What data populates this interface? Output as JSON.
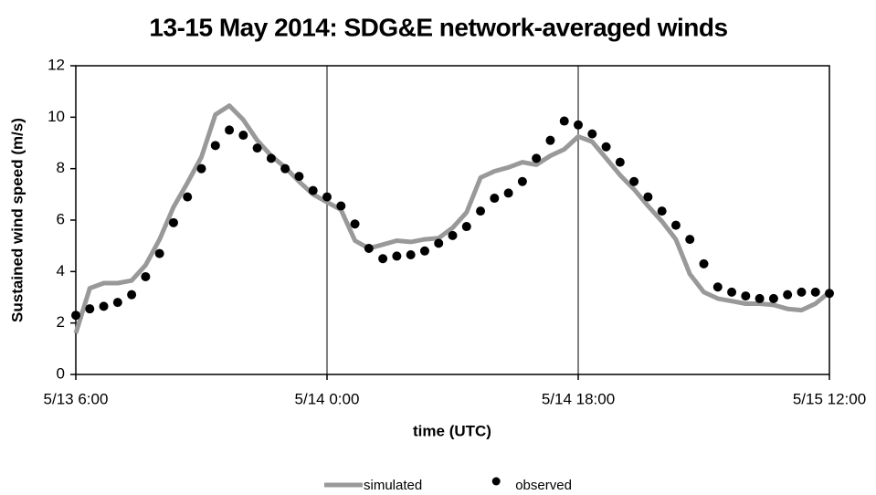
{
  "chart_data": {
    "type": "line",
    "title": "13-15 May 2014: SDG&E network-averaged winds",
    "xlabel": "time (UTC)",
    "ylabel": "Sustained wind speed (m/s)",
    "x": [
      "5/13 6:00",
      "5/13 7:00",
      "5/13 8:00",
      "5/13 9:00",
      "5/13 10:00",
      "5/13 11:00",
      "5/13 12:00",
      "5/13 13:00",
      "5/13 14:00",
      "5/13 15:00",
      "5/13 16:00",
      "5/13 17:00",
      "5/13 18:00",
      "5/13 19:00",
      "5/13 20:00",
      "5/13 21:00",
      "5/13 22:00",
      "5/13 23:00",
      "5/14 0:00",
      "5/14 1:00",
      "5/14 2:00",
      "5/14 3:00",
      "5/14 4:00",
      "5/14 5:00",
      "5/14 6:00",
      "5/14 7:00",
      "5/14 8:00",
      "5/14 9:00",
      "5/14 10:00",
      "5/14 11:00",
      "5/14 12:00",
      "5/14 13:00",
      "5/14 14:00",
      "5/14 15:00",
      "5/14 16:00",
      "5/14 17:00",
      "5/14 18:00",
      "5/14 19:00",
      "5/14 20:00",
      "5/14 21:00",
      "5/14 22:00",
      "5/14 23:00",
      "5/15 0:00",
      "5/15 1:00",
      "5/15 2:00",
      "5/15 3:00",
      "5/15 4:00",
      "5/15 5:00",
      "5/15 6:00",
      "5/15 7:00",
      "5/15 8:00",
      "5/15 9:00",
      "5/15 10:00",
      "5/15 11:00",
      "5/15 12:00"
    ],
    "series": [
      {
        "name": "simulated",
        "style": "line",
        "color": "#999999",
        "values": [
          1.6,
          3.35,
          3.55,
          3.55,
          3.65,
          4.25,
          5.25,
          6.5,
          7.45,
          8.45,
          10.1,
          10.45,
          9.9,
          9.1,
          8.5,
          8.05,
          7.5,
          7.0,
          6.7,
          6.4,
          5.2,
          4.9,
          5.05,
          5.2,
          5.15,
          5.25,
          5.3,
          5.7,
          6.3,
          7.65,
          7.9,
          8.05,
          8.25,
          8.15,
          8.5,
          8.75,
          9.25,
          9.05,
          8.4,
          7.75,
          7.2,
          6.55,
          5.95,
          5.25,
          3.9,
          3.2,
          2.95,
          2.85,
          2.75,
          2.75,
          2.7,
          2.55,
          2.5,
          2.75,
          3.2
        ]
      },
      {
        "name": "observed",
        "style": "markers",
        "color": "#000000",
        "values": [
          2.3,
          2.55,
          2.65,
          2.8,
          3.1,
          3.8,
          4.7,
          5.9,
          6.9,
          8.0,
          8.9,
          9.5,
          9.3,
          8.8,
          8.4,
          8.0,
          7.7,
          7.15,
          6.9,
          6.55,
          5.85,
          4.9,
          4.5,
          4.6,
          4.65,
          4.8,
          5.1,
          5.4,
          5.75,
          6.35,
          6.85,
          7.05,
          7.5,
          8.4,
          9.1,
          9.85,
          9.7,
          9.35,
          8.85,
          8.25,
          7.5,
          6.9,
          6.35,
          5.8,
          5.25,
          4.3,
          3.4,
          3.2,
          3.05,
          2.95,
          2.95,
          3.1,
          3.2,
          3.2,
          3.15
        ]
      }
    ],
    "xlim": [
      "5/13 6:00",
      "5/15 12:00"
    ],
    "xticks": [
      "5/13 6:00",
      "5/14 0:00",
      "5/14 18:00",
      "5/15 12:00"
    ],
    "ylim": [
      0,
      12
    ],
    "yticks": [
      0,
      2,
      4,
      6,
      8,
      10,
      12
    ],
    "xgrid": true,
    "legend": "bottom"
  }
}
